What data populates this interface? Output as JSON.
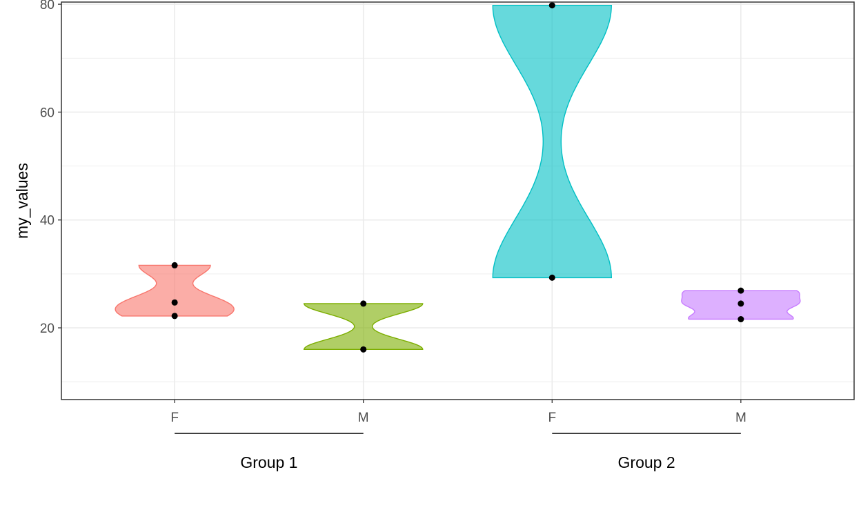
{
  "chart_data": {
    "type": "violin",
    "title": "",
    "xlabel": "",
    "ylabel": "my_values",
    "ylim": [
      6.7,
      80.4
    ],
    "yticks": [
      20,
      40,
      60,
      80
    ],
    "ytick_labels": [
      "20",
      "40",
      "60",
      "80"
    ],
    "grid": true,
    "legend": "none",
    "categories": [
      {
        "label": "F",
        "group": "Group 1",
        "color": "#F8766D",
        "points": [
          22.2,
          24.7,
          31.6
        ]
      },
      {
        "label": "M",
        "group": "Group 1",
        "color": "#7CAE00",
        "points": [
          16.0,
          24.5
        ]
      },
      {
        "label": "F",
        "group": "Group 2",
        "color": "#00BFC4",
        "points": [
          29.3,
          79.8
        ]
      },
      {
        "label": "M",
        "group": "Group 2",
        "color": "#C77CFF",
        "points": [
          21.6,
          24.5,
          26.9
        ]
      }
    ],
    "groups": [
      "Group 1",
      "Group 2"
    ]
  }
}
